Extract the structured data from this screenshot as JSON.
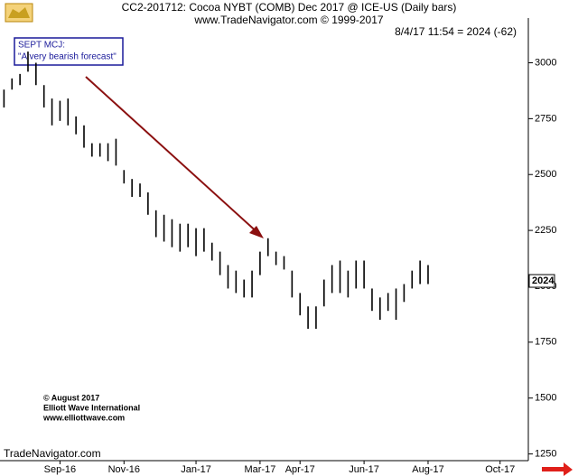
{
  "chart_data": {
    "type": "hilo",
    "title": "CC2-201712:  Cocoa NYBT (COMB) Dec 2017 @ ICE-US  (Daily bars)",
    "subtitle": "www.TradeNavigator.com © 1999-2017",
    "quote": "8/4/17 11:54 = 2024 (-62)",
    "annotation": [
      "SEPT MCJ:",
      "\"A very bearish forecast\""
    ],
    "credits": [
      "© August 2017",
      "Elliott Wave International",
      "www.elliottwave.com"
    ],
    "source": "TradeNavigator.com",
    "last_price": 2024,
    "color": "#000000",
    "categories": [
      null,
      null,
      null,
      null,
      null,
      null,
      null,
      "Sep-16",
      null,
      null,
      null,
      null,
      null,
      null,
      null,
      "Nov-16",
      null,
      null,
      null,
      null,
      null,
      null,
      null,
      null,
      "Jan-17",
      null,
      null,
      null,
      null,
      null,
      null,
      null,
      "Mar-17",
      null,
      null,
      null,
      null,
      "Apr-17",
      null,
      null,
      null,
      null,
      null,
      null,
      null,
      "Jun-17",
      null,
      null,
      null,
      null,
      null,
      null,
      null,
      "Aug-17",
      null,
      null,
      null,
      null,
      null,
      null,
      null,
      null,
      "Oct-17",
      null,
      null,
      null
    ],
    "high": [
      2880,
      2930,
      2950,
      3050,
      3000,
      2900,
      2840,
      2830,
      2840,
      2760,
      2720,
      2640,
      2640,
      2640,
      2660,
      2520,
      2480,
      2460,
      2420,
      2340,
      2320,
      2300,
      2280,
      2280,
      2260,
      2260,
      2195,
      2155,
      2095,
      2070,
      2030,
      2070,
      2155,
      2215,
      2155,
      2135,
      2070,
      1970,
      1910,
      1910,
      2030,
      2095,
      2115,
      2070,
      2115,
      2115,
      1990,
      1950,
      1970,
      1990,
      2010,
      2070,
      2115,
      2095,
      null,
      null,
      null,
      null,
      null,
      null,
      null,
      null,
      null,
      null,
      null,
      null
    ],
    "low": [
      2800,
      2880,
      2900,
      2960,
      2900,
      2800,
      2720,
      2740,
      2720,
      2680,
      2620,
      2580,
      2580,
      2560,
      2540,
      2460,
      2400,
      2400,
      2320,
      2220,
      2200,
      2175,
      2155,
      2175,
      2135,
      2155,
      2115,
      2050,
      1990,
      1970,
      1950,
      1950,
      2050,
      2135,
      2095,
      2075,
      1950,
      1870,
      1810,
      1810,
      1910,
      1970,
      1970,
      1950,
      1990,
      1990,
      1890,
      1850,
      1890,
      1850,
      1930,
      1990,
      2010,
      2010,
      null,
      null,
      null,
      null,
      null,
      null,
      null,
      null,
      null,
      null,
      null,
      null
    ],
    "ylim": [
      1220,
      3200
    ],
    "yticks": [
      1250,
      1500,
      1750,
      2000,
      2250,
      2500,
      2750,
      3000
    ]
  }
}
